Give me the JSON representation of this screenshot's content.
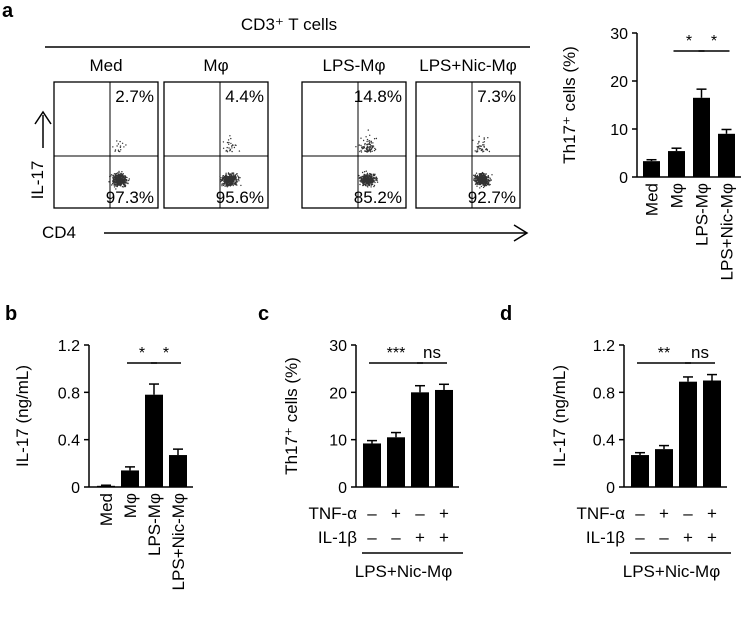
{
  "panel_labels": {
    "a": "a",
    "b": "b",
    "c": "c",
    "d": "d"
  },
  "flow": {
    "header": "CD3⁺ T cells",
    "y_axis_label": "IL-17",
    "x_axis_label": "CD4",
    "plots": [
      {
        "title": "Med",
        "upper": "2.7%",
        "lower": "97.3%",
        "upper_fraction": 0.027
      },
      {
        "title": "Mφ",
        "upper": "4.4%",
        "lower": "95.6%",
        "upper_fraction": 0.044
      },
      {
        "title": "LPS-Mφ",
        "upper": "14.8%",
        "lower": "85.2%",
        "upper_fraction": 0.148
      },
      {
        "title": "LPS+Nic-Mφ",
        "upper": "7.3%",
        "lower": "92.7%",
        "upper_fraction": 0.073
      }
    ]
  },
  "chart_data": [
    {
      "id": "a",
      "type": "bar",
      "ylabel": "Th17⁺ cells (%)",
      "ylim": [
        0,
        30
      ],
      "yticks": [
        "0",
        "10",
        "20",
        "30"
      ],
      "categories": [
        "Med",
        "Mφ",
        "LPS-Mφ",
        "LPS+Nic-Mφ"
      ],
      "values": [
        3.3,
        5.4,
        16.5,
        9.0
      ],
      "errors": [
        0.3,
        0.6,
        1.8,
        0.9
      ],
      "significance": [
        {
          "from": 1,
          "to": 2,
          "label": "*"
        },
        {
          "from": 2,
          "to": 3,
          "label": "*"
        }
      ]
    },
    {
      "id": "b",
      "type": "bar",
      "ylabel": "IL-17 (ng/mL)",
      "ylim": [
        0,
        1.2
      ],
      "yticks": [
        "0",
        "0.4",
        "0.8",
        "1.2"
      ],
      "categories": [
        "Med",
        "Mφ",
        "LPS-Mφ",
        "LPS+Nic-Mφ"
      ],
      "values": [
        0.01,
        0.14,
        0.78,
        0.27
      ],
      "errors": [
        0.005,
        0.03,
        0.09,
        0.05
      ],
      "significance": [
        {
          "from": 1,
          "to": 2,
          "label": "*"
        },
        {
          "from": 2,
          "to": 3,
          "label": "*"
        }
      ]
    },
    {
      "id": "c",
      "type": "bar",
      "ylabel": "Th17⁺ cells (%)",
      "ylim": [
        0,
        30
      ],
      "yticks": [
        "0",
        "10",
        "20",
        "30"
      ],
      "values": [
        9.2,
        10.5,
        20.0,
        20.5
      ],
      "errors": [
        0.6,
        1.0,
        1.4,
        1.2
      ],
      "conditions": [
        {
          "label": "TNF-α",
          "signs": [
            "–",
            "+",
            "–",
            "+"
          ]
        },
        {
          "label": "IL-1β",
          "signs": [
            "–",
            "–",
            "+",
            "+"
          ]
        }
      ],
      "group_label": "LPS+Nic-Mφ",
      "significance": [
        {
          "from": 0,
          "to": 2,
          "label": "***"
        },
        {
          "from": 2,
          "to": 3,
          "label": "ns"
        }
      ]
    },
    {
      "id": "d",
      "type": "bar",
      "ylabel": "IL-17 (ng/mL)",
      "ylim": [
        0,
        1.2
      ],
      "yticks": [
        "0",
        "0.4",
        "0.8",
        "1.2"
      ],
      "values": [
        0.27,
        0.32,
        0.89,
        0.9
      ],
      "errors": [
        0.02,
        0.03,
        0.04,
        0.05
      ],
      "conditions": [
        {
          "label": "TNF-α",
          "signs": [
            "–",
            "+",
            "–",
            "+"
          ]
        },
        {
          "label": "IL-1β",
          "signs": [
            "–",
            "–",
            "+",
            "+"
          ]
        }
      ],
      "group_label": "LPS+Nic-Mφ",
      "significance": [
        {
          "from": 0,
          "to": 2,
          "label": "**"
        },
        {
          "from": 2,
          "to": 3,
          "label": "ns"
        }
      ]
    }
  ]
}
